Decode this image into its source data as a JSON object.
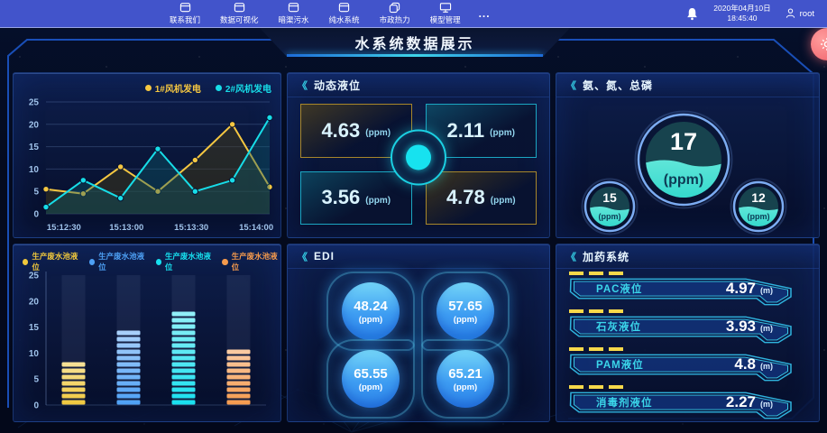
{
  "topbar": {
    "menu": [
      {
        "label": "联系我们",
        "icon": "window-icon"
      },
      {
        "label": "数据可视化",
        "icon": "window-icon"
      },
      {
        "label": "暗渠污水",
        "icon": "window-icon"
      },
      {
        "label": "纯水系统",
        "icon": "window-icon"
      },
      {
        "label": "市政热力",
        "icon": "copy-icon"
      },
      {
        "label": "模型管理",
        "icon": "monitor-icon"
      }
    ],
    "more": "...",
    "date": "2020年04月10日",
    "time": "18:45:40",
    "user": "root"
  },
  "title": "水系统数据展示",
  "ui": {
    "chevron": "《"
  },
  "chart_data": [
    {
      "id": "wind-power-line",
      "type": "line",
      "title": "",
      "x_tick_labels": [
        "15:12:30",
        "15:13:00",
        "15:13:30",
        "15:14:00"
      ],
      "ylim": [
        0,
        25
      ],
      "yticks": [
        0,
        5,
        10,
        15,
        20,
        25
      ],
      "grid": true,
      "legend_position": "top-right",
      "series": [
        {
          "name": "1#风机发电",
          "color": "#f5c741",
          "fill": "rgba(70,62,22,0.45)",
          "values": [
            5.5,
            4.5,
            10.5,
            5,
            12,
            20,
            6
          ]
        },
        {
          "name": "2#风机发电",
          "color": "#17dde8",
          "fill": "rgba(14,95,108,0.38)",
          "values": [
            1.5,
            7.5,
            3.5,
            14.5,
            5,
            7.5,
            21.5
          ]
        }
      ]
    },
    {
      "id": "wastewater-bars",
      "type": "bar",
      "title": "",
      "ylim": [
        0,
        25
      ],
      "yticks": [
        0,
        5,
        10,
        15,
        20,
        25
      ],
      "grid": false,
      "legend_position": "top",
      "series": [
        {
          "name": "生产废水池液位",
          "color": "#f0c83c",
          "value": 9.5
        },
        {
          "name": "生产废水池液位",
          "color": "#4da0f5",
          "value": 15
        },
        {
          "name": "生产废水池液位",
          "color": "#17e0ef",
          "value": 18.5
        },
        {
          "name": "生产废水池液位",
          "color": "#f59a4d",
          "value": 12
        }
      ]
    }
  ],
  "panels": {
    "dynamic_level": {
      "title": "动态液位",
      "boxes": [
        {
          "value": "4.63",
          "unit": "(ppm)",
          "accent": "gold"
        },
        {
          "value": "2.11",
          "unit": "(ppm)",
          "accent": "cyan"
        },
        {
          "value": "3.56",
          "unit": "(ppm)",
          "accent": "cyan"
        },
        {
          "value": "4.78",
          "unit": "(ppm)",
          "accent": "gold"
        }
      ]
    },
    "nutrients": {
      "title": "氨、氮、总磷",
      "gauges": [
        {
          "value": "17",
          "unit": "(ppm)",
          "size": "large"
        },
        {
          "value": "15",
          "unit": "(ppm)",
          "size": "small"
        },
        {
          "value": "12",
          "unit": "(ppm)",
          "size": "small"
        }
      ]
    },
    "edi": {
      "title": "EDI",
      "circles": [
        {
          "value": "48.24",
          "unit": "(ppm)"
        },
        {
          "value": "57.65",
          "unit": "(ppm)"
        },
        {
          "value": "65.55",
          "unit": "(ppm)"
        },
        {
          "value": "65.21",
          "unit": "(ppm)"
        }
      ]
    },
    "dosing": {
      "title": "加药系统",
      "rows": [
        {
          "label": "PAC液位",
          "value": "4.97",
          "unit": "(m)"
        },
        {
          "label": "石灰液位",
          "value": "3.93",
          "unit": "(m)"
        },
        {
          "label": "PAM液位",
          "value": "4.8",
          "unit": "(m)"
        },
        {
          "label": "消毒剂液位",
          "value": "2.27",
          "unit": "(m)"
        }
      ]
    }
  }
}
